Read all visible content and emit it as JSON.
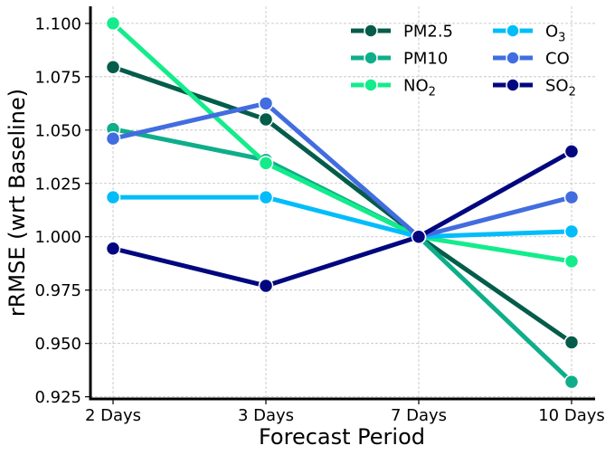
{
  "chart_data": {
    "type": "line",
    "title": "",
    "xlabel": "Forecast Period",
    "ylabel": "rRMSE (wrt Baseline)",
    "categories": [
      "2 Days",
      "3 Days",
      "7 Days",
      "10 Days"
    ],
    "ylim": [
      0.924,
      1.108
    ],
    "yticks": [
      "0.925",
      "0.950",
      "0.975",
      "1.000",
      "1.025",
      "1.050",
      "1.075",
      "1.100"
    ],
    "grid": true,
    "legend_position": "top-right",
    "series": [
      {
        "name": "PM2.5",
        "base": "PM",
        "sub": "2.5",
        "sub_style": "inline",
        "color": "#045c4a",
        "values": [
          1.0795,
          1.055,
          1.0,
          0.9505
        ]
      },
      {
        "name": "PM10",
        "base": "PM",
        "sub": "10",
        "sub_style": "inline",
        "color": "#0fae8a",
        "values": [
          1.0505,
          1.036,
          1.0,
          0.932
        ]
      },
      {
        "name": "NO2",
        "base": "NO",
        "sub": "2",
        "sub_style": "subscript",
        "color": "#14ec8c",
        "values": [
          1.1,
          1.0345,
          1.0,
          0.9885
        ]
      },
      {
        "name": "O3",
        "base": "O",
        "sub": "3",
        "sub_style": "subscript",
        "color": "#02bdfa",
        "values": [
          1.0185,
          1.0185,
          1.0,
          1.0025
        ]
      },
      {
        "name": "CO",
        "base": "CO",
        "sub": "",
        "sub_style": "none",
        "color": "#426de0",
        "values": [
          1.046,
          1.0625,
          1.0,
          1.0185
        ]
      },
      {
        "name": "SO2",
        "base": "SO",
        "sub": "2",
        "sub_style": "subscript",
        "color": "#02077f",
        "values": [
          0.9945,
          0.977,
          1.0,
          1.04
        ]
      }
    ]
  }
}
